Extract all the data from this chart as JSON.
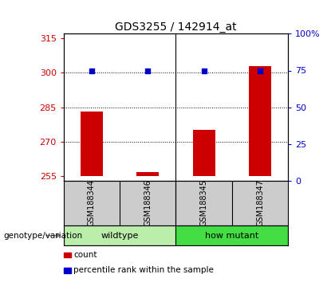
{
  "title": "GDS3255 / 142914_at",
  "samples": [
    "GSM188344",
    "GSM188346",
    "GSM188345",
    "GSM188347"
  ],
  "count_values": [
    283,
    256.5,
    275,
    303
  ],
  "percentile_values": [
    75,
    75,
    75,
    75
  ],
  "ylim_left": [
    253,
    317
  ],
  "ylim_right": [
    0,
    100
  ],
  "yticks_left": [
    255,
    270,
    285,
    300,
    315
  ],
  "yticks_right": [
    0,
    25,
    50,
    75,
    100
  ],
  "ytick_labels_right": [
    "0",
    "25",
    "50",
    "75",
    "100%"
  ],
  "bar_color": "#cc0000",
  "dot_color": "#0000cc",
  "groups": [
    {
      "label": "wildtype",
      "indices": [
        0,
        1
      ],
      "color": "#bbeeaa"
    },
    {
      "label": "how mutant",
      "indices": [
        2,
        3
      ],
      "color": "#44dd44"
    }
  ],
  "group_label": "genotype/variation",
  "legend_items": [
    {
      "label": "count",
      "color": "#cc0000"
    },
    {
      "label": "percentile rank within the sample",
      "color": "#0000cc"
    }
  ],
  "bar_width": 0.4,
  "bar_bottom": 255,
  "sample_box_color": "#cccccc",
  "title_fontsize": 10,
  "tick_fontsize": 8,
  "group_fontsize": 8,
  "legend_fontsize": 7.5
}
